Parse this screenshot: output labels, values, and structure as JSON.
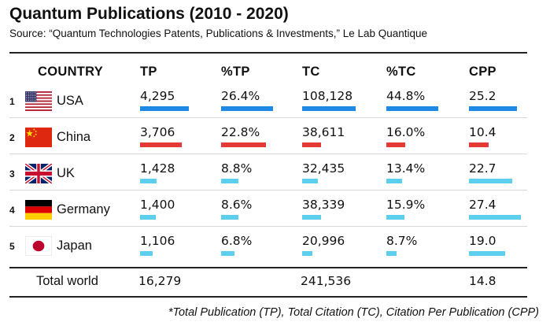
{
  "title": "Quantum Publications (2010 - 2020)",
  "source": "Source: “Quantum Technologies Patents, Publications & Investments,” Le Lab Quantique",
  "footnote": "*Total Publication (TP), Total Citation (TC), Citation Per Publication (CPP)",
  "chart_data": {
    "type": "table",
    "columns": [
      "COUNTRY",
      "TP",
      "%TP",
      "TC",
      "%TC",
      "CPP"
    ],
    "rows": [
      {
        "rank": "1",
        "country": "USA",
        "flag_icon": "usa-flag-icon",
        "bar_color": "#1e88e5",
        "TP": "4,295",
        "TP_pct": "26.4%",
        "TC": "108,128",
        "TC_pct": "44.8%",
        "CPP": "25.2",
        "tp_value": 4295,
        "tp_pct_value": 26.4,
        "tc_value": 108128,
        "tc_pct_value": 44.8,
        "cpp_value": 25.2
      },
      {
        "rank": "2",
        "country": "China",
        "flag_icon": "china-flag-icon",
        "bar_color": "#e53935",
        "TP": "3,706",
        "TP_pct": "22.8%",
        "TC": "38,611",
        "TC_pct": "16.0%",
        "CPP": "10.4",
        "tp_value": 3706,
        "tp_pct_value": 22.8,
        "tc_value": 38611,
        "tc_pct_value": 16.0,
        "cpp_value": 10.4
      },
      {
        "rank": "3",
        "country": "UK",
        "flag_icon": "uk-flag-icon",
        "bar_color": "#5ccfee",
        "TP": "1,428",
        "TP_pct": "8.8%",
        "TC": "32,435",
        "TC_pct": "13.4%",
        "CPP": "22.7",
        "tp_value": 1428,
        "tp_pct_value": 8.8,
        "tc_value": 32435,
        "tc_pct_value": 13.4,
        "cpp_value": 22.7
      },
      {
        "rank": "4",
        "country": "Germany",
        "flag_icon": "germany-flag-icon",
        "bar_color": "#5ccfee",
        "TP": "1,400",
        "TP_pct": "8.6%",
        "TC": "38,339",
        "TC_pct": "15.9%",
        "CPP": "27.4",
        "tp_value": 1400,
        "tp_pct_value": 8.6,
        "tc_value": 38339,
        "tc_pct_value": 15.9,
        "cpp_value": 27.4
      },
      {
        "rank": "5",
        "country": "Japan",
        "flag_icon": "japan-flag-icon",
        "bar_color": "#5ccfee",
        "TP": "1,106",
        "TP_pct": "6.8%",
        "TC": "20,996",
        "TC_pct": "8.7%",
        "CPP": "19.0",
        "tp_value": 1106,
        "tp_pct_value": 6.8,
        "tc_value": 20996,
        "tc_pct_value": 8.7,
        "cpp_value": 19.0
      }
    ],
    "total": {
      "label": "Total world",
      "TP": "16,279",
      "TC": "241,536",
      "CPP": "14.8"
    }
  }
}
